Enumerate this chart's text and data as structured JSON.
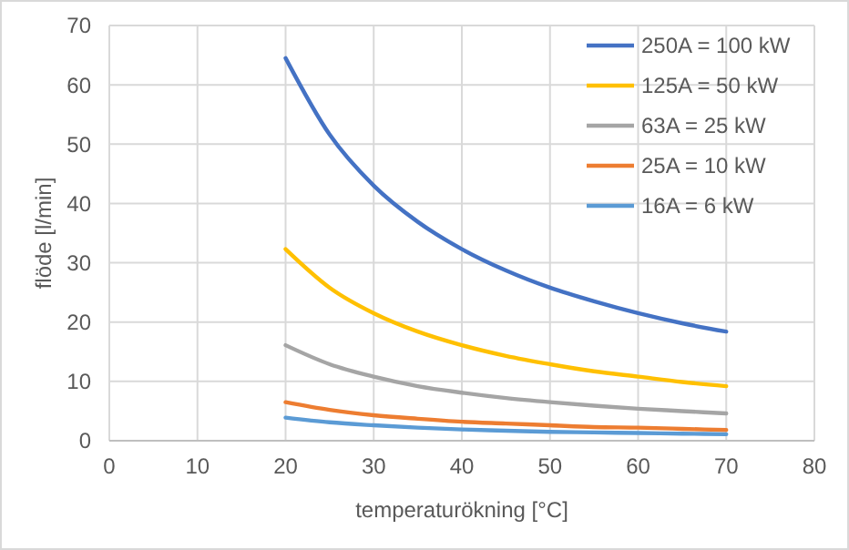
{
  "chart_data": {
    "type": "line",
    "xlabel": "temperaturökning [°C]",
    "ylabel": "flöde [l/min]",
    "x": [
      20,
      25,
      30,
      35,
      40,
      45,
      50,
      55,
      60,
      65,
      70
    ],
    "series": [
      {
        "name": "250A = 100 kW",
        "color": "#4472c4",
        "values": [
          64.5,
          51.6,
          43,
          36.9,
          32.3,
          28.7,
          25.8,
          23.5,
          21.5,
          19.8,
          18.4
        ]
      },
      {
        "name": "125A = 50 kW",
        "color": "#ffc000",
        "values": [
          32.3,
          25.8,
          21.5,
          18.4,
          16.1,
          14.3,
          12.9,
          11.7,
          10.8,
          9.9,
          9.2
        ]
      },
      {
        "name": "63A = 25 kW",
        "color": "#a5a5a5",
        "values": [
          16.1,
          12.9,
          10.8,
          9.2,
          8.1,
          7.2,
          6.5,
          5.9,
          5.4,
          5.0,
          4.6
        ]
      },
      {
        "name": "25A = 10 kW",
        "color": "#ed7d31",
        "values": [
          6.5,
          5.2,
          4.3,
          3.7,
          3.2,
          2.9,
          2.6,
          2.3,
          2.2,
          2.0,
          1.8
        ]
      },
      {
        "name": "16A = 6 kW",
        "color": "#5b9bd5",
        "values": [
          3.9,
          3.1,
          2.6,
          2.2,
          1.9,
          1.7,
          1.5,
          1.4,
          1.3,
          1.2,
          1.1
        ]
      }
    ],
    "xlim": [
      0,
      80
    ],
    "xticks": [
      0,
      10,
      20,
      30,
      40,
      50,
      60,
      70,
      80
    ],
    "ylim": [
      0,
      70
    ],
    "yticks": [
      0,
      10,
      20,
      30,
      40,
      50,
      60,
      70
    ],
    "grid": true,
    "legend": "top right",
    "marker": "none",
    "line_style": "solid"
  }
}
